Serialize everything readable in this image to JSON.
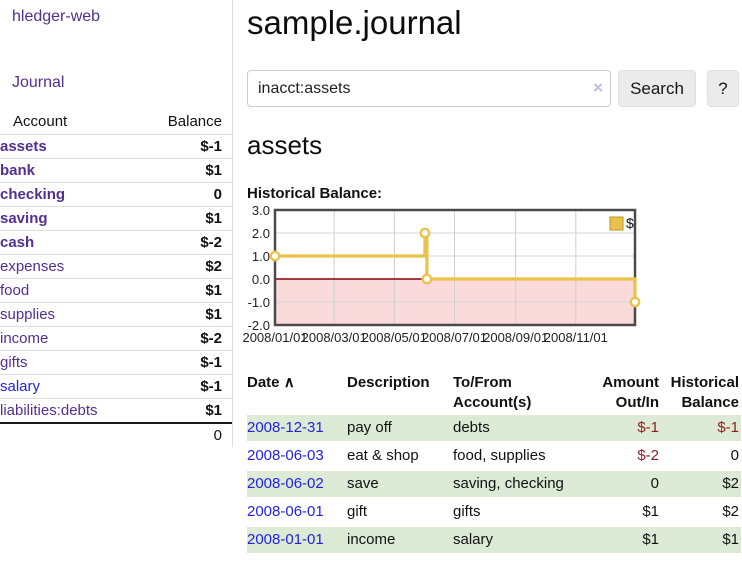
{
  "colors": {
    "accent_purple": "#552e91",
    "link_blue": "#2323dc",
    "negative_dark_red": "#8f1d1d",
    "negative_muted_rose": "#c68787",
    "row_green": "#dcead6",
    "chart_line_gold": "#e9c34d",
    "chart_negative_fill": "#fadada",
    "chart_zero_line": "#8b0000"
  },
  "app": {
    "brand": "hledger-web"
  },
  "sidebar": {
    "nav_journal": "Journal",
    "accounts": {
      "col_account": "Account",
      "col_balance": "Balance",
      "rows": [
        {
          "name": "assets",
          "indent": 0,
          "bold": true,
          "balance": "$-1",
          "neg": true
        },
        {
          "name": "bank",
          "indent": 1,
          "bold": true,
          "balance": "$1"
        },
        {
          "name": "checking",
          "indent": 2,
          "bold": true,
          "balance": "0"
        },
        {
          "name": "saving",
          "indent": 2,
          "bold": true,
          "balance": "$1"
        },
        {
          "name": "cash",
          "indent": 1,
          "bold": true,
          "balance": "$-2",
          "neg": true
        },
        {
          "name": "expenses",
          "indent": 0,
          "bold": false,
          "balance": "$2"
        },
        {
          "name": "food",
          "indent": 1,
          "bold": false,
          "balance": "$1"
        },
        {
          "name": "supplies",
          "indent": 1,
          "bold": false,
          "balance": "$1"
        },
        {
          "name": "income",
          "indent": 0,
          "bold": false,
          "balance": "$-2",
          "neg": true,
          "muted": true
        },
        {
          "name": "gifts",
          "indent": 1,
          "bold": false,
          "balance": "$-1",
          "neg": true,
          "muted": true
        },
        {
          "name": "salary",
          "indent": 1,
          "bold": false,
          "balance": "$-1",
          "neg": true,
          "muted": true,
          "blue": true
        },
        {
          "name": "liabilities:debts",
          "indent": 0,
          "bold": false,
          "balance": "$1"
        }
      ],
      "total": "0"
    }
  },
  "header": {
    "title": "sample.journal"
  },
  "search": {
    "value": "inacct:assets",
    "clear_icon": "×",
    "button_label": "Search",
    "help_label": "?"
  },
  "account_page": {
    "heading": "assets",
    "chart_title": "Historical Balance:"
  },
  "chart_data": {
    "type": "line",
    "step": true,
    "title": "Historical Balance:",
    "legend": [
      {
        "label": "$",
        "color": "#e9c34d"
      }
    ],
    "legend_position": "top-right",
    "grid": true,
    "ylim": [
      -2,
      3
    ],
    "yticks": [
      "3.0",
      "2.0",
      "1.0",
      "0.0",
      "-1.0",
      "-2.0"
    ],
    "ytick_values": [
      3,
      2,
      1,
      0,
      -1,
      -2
    ],
    "xlim_days": [
      0,
      365
    ],
    "xticks": [
      {
        "day": 0,
        "label": "2008/01/01"
      },
      {
        "day": 60,
        "label": "2008/03/01"
      },
      {
        "day": 121,
        "label": "2008/05/01"
      },
      {
        "day": 182,
        "label": "2008/07/01"
      },
      {
        "day": 244,
        "label": "2008/09/01"
      },
      {
        "day": 305,
        "label": "2008/11/01"
      }
    ],
    "series": [
      {
        "name": "$",
        "color": "#e9c34d",
        "points": [
          {
            "date": "2008-01-01",
            "day": 0,
            "value": 1
          },
          {
            "date": "2008-06-01",
            "day": 152,
            "value": 2
          },
          {
            "date": "2008-06-03",
            "day": 154,
            "value": 0
          },
          {
            "date": "2008-12-31",
            "day": 365,
            "value": -1
          }
        ]
      }
    ],
    "negative_region_shaded": true,
    "zero_line_color": "#8b0000"
  },
  "register": {
    "columns": {
      "date": "Date",
      "sort_icon": "∧",
      "description": "Description",
      "accounts": "To/From Account(s)",
      "amount": "Amount Out/In",
      "balance": "Historical Balance"
    },
    "rows": [
      {
        "date": "2008-12-31",
        "description": "pay off",
        "accounts": "debts",
        "amount": "$-1",
        "amount_neg": true,
        "balance": "$-1",
        "balance_neg": true
      },
      {
        "date": "2008-06-03",
        "description": "eat & shop",
        "accounts": "food, supplies",
        "amount": "$-2",
        "amount_neg": true,
        "balance": "0",
        "balance_neg": false
      },
      {
        "date": "2008-06-02",
        "description": "save",
        "accounts": "saving, checking",
        "amount": "0",
        "amount_neg": false,
        "balance": "$2",
        "balance_neg": false
      },
      {
        "date": "2008-06-01",
        "description": "gift",
        "accounts": "gifts",
        "amount": "$1",
        "amount_neg": false,
        "balance": "$2",
        "balance_neg": false
      },
      {
        "date": "2008-01-01",
        "description": "income",
        "accounts": "salary",
        "amount": "$1",
        "amount_neg": false,
        "balance": "$1",
        "balance_neg": false
      }
    ]
  }
}
